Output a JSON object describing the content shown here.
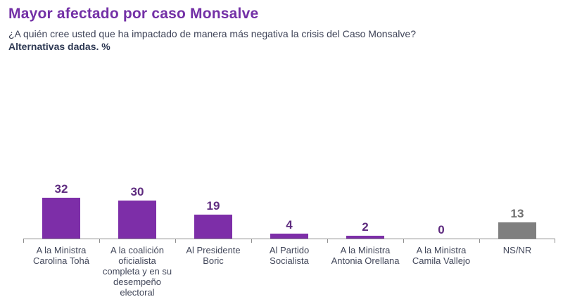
{
  "header": {
    "title": "Mayor afectado por caso Monsalve",
    "subtitle": "¿A quién cree usted que ha impactado de manera más negativa la crisis del Caso Monsalve?",
    "note": "Alternativas dadas. %"
  },
  "chart_data": {
    "type": "bar",
    "title": "Mayor afectado por caso Monsalve",
    "unit": "%",
    "categories": [
      "A la Ministra Carolina Tohá",
      "A la coalición oficialista completa y en su desempeño electoral",
      "Al Presidente Boric",
      "Al Partido Socialista",
      "A la Ministra Antonia Orellana",
      "A la Ministra Camila Vallejo",
      "NS/NR"
    ],
    "values": [
      32,
      30,
      19,
      4,
      2,
      0,
      13
    ],
    "bar_colors": [
      "#7D2EA8",
      "#7D2EA8",
      "#7D2EA8",
      "#7D2EA8",
      "#7D2EA8",
      "#7D2EA8",
      "#7F7F7F"
    ],
    "value_label_colors": [
      "#5E2B7F",
      "#5E2B7F",
      "#5E2B7F",
      "#5E2B7F",
      "#5E2B7F",
      "#5E2B7F",
      "#6F6F6F"
    ],
    "xlabel": "",
    "ylabel": "",
    "ylim": [
      0,
      100
    ],
    "grid": false,
    "legend": false,
    "value_labels": true,
    "axis_color": "#8E8E8E"
  },
  "colors": {
    "title": "#7330A6",
    "subtitle": "#3E4357",
    "category_label": "#42475A",
    "background": "#FFFFFF"
  }
}
